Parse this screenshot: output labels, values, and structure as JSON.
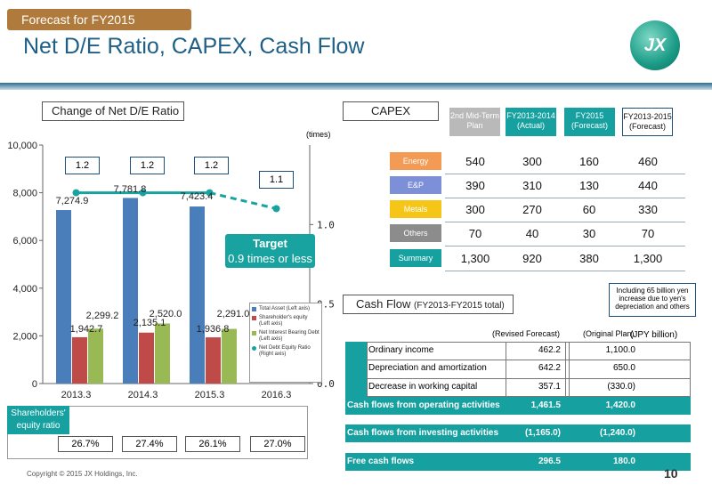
{
  "header": {
    "tag": "Forecast for FY2015",
    "title": "Net D/E Ratio, CAPEX, Cash Flow",
    "logo_text": "JX"
  },
  "left_panel": {
    "title": "Change of Net D/E Ratio",
    "right_axis_unit": "(times)",
    "target_title": "Target",
    "target_text": "0.9 times or less",
    "bar_labels": [
      [
        "7,274.9",
        "1,942.7",
        "2,299.2"
      ],
      [
        "7,781.8",
        "2,135.1",
        "2,520.0"
      ],
      [
        "7,423.4",
        "1,936.8",
        "2,291.0"
      ]
    ],
    "ratio_labels": [
      "1.2",
      "1.2",
      "1.2",
      "1.1"
    ],
    "legend": [
      "Total Asset (Left axis)",
      "Shareholder's equity (Left axis)",
      "Net Interest Bearing Debt (Left axis)",
      "Net Debt Equity Ratio (Right axis)"
    ],
    "equity_label": "Shareholders' equity ratio",
    "equity_ratios": [
      "26.7%",
      "27.4%",
      "26.1%",
      "27.0%"
    ]
  },
  "chart_data": {
    "type": "bar",
    "categories": [
      "2013.3",
      "2014.3",
      "2015.3",
      "2016.3"
    ],
    "series": [
      {
        "name": "Total Asset (Left axis)",
        "axis": "left",
        "values": [
          7274.9,
          7781.8,
          7423.4,
          null
        ],
        "color": "#4a7ebb"
      },
      {
        "name": "Shareholder's equity (Left axis)",
        "axis": "left",
        "values": [
          1942.7,
          2135.1,
          1936.8,
          null
        ],
        "color": "#be4b48"
      },
      {
        "name": "Net Interest Bearing Debt (Left axis)",
        "axis": "left",
        "values": [
          2299.2,
          2520.0,
          2291.0,
          null
        ],
        "color": "#98b954"
      },
      {
        "name": "Net Debt Equity Ratio (Right axis)",
        "axis": "right",
        "type": "line",
        "values": [
          1.2,
          1.2,
          1.2,
          1.1
        ],
        "color": "#18a3a0"
      }
    ],
    "target_value": 0.9,
    "ylim": [
      0,
      10000
    ],
    "y_ticks": [
      "0",
      "2,000",
      "4,000",
      "6,000",
      "8,000",
      "10,000"
    ],
    "y2lim": [
      0,
      1.5
    ],
    "y2_ticks": [
      "0.0",
      "0.5",
      "1.0"
    ],
    "ylabel": "",
    "y2label": "(times)"
  },
  "capex": {
    "title": "CAPEX",
    "headers": [
      {
        "label": "2nd Mid-Term Plan",
        "color": "#b9b9b9"
      },
      {
        "label": "FY2013-2014 (Actual)",
        "color": "#16a0a0"
      },
      {
        "label": "FY2015 (Forecast)",
        "color": "#16a0a0"
      },
      {
        "label": "FY2013-2015 (Forecast)",
        "color": "#ffffff"
      }
    ],
    "rows": [
      {
        "segment": "Energy",
        "color": "#f39a55",
        "values": [
          "540",
          "300",
          "160",
          "460"
        ]
      },
      {
        "segment": "E&P",
        "color": "#7d8fd6",
        "values": [
          "390",
          "310",
          "130",
          "440"
        ]
      },
      {
        "segment": "Metals",
        "color": "#f5c518",
        "values": [
          "300",
          "270",
          "60",
          "330"
        ]
      },
      {
        "segment": "Others",
        "color": "#8c8c8c",
        "values": [
          "70",
          "40",
          "30",
          "70"
        ]
      },
      {
        "segment": "Summary",
        "color": "#16a0a0",
        "values": [
          "1,300",
          "920",
          "380",
          "1,300"
        ]
      }
    ],
    "note": "Including 65 billion yen increase due to yen's depreciation and others"
  },
  "cashflow": {
    "title": "Cash Flow",
    "subtitle": "(FY2013-FY2015 total)",
    "col_revised": "(Revised Forecast)",
    "col_original": "(Original Plan)",
    "unit": "(JPY billion)",
    "items": [
      {
        "label": "Ordinary income",
        "revised": "462.2",
        "original": "1,100.0"
      },
      {
        "label": "Depreciation and amortization",
        "revised": "642.2",
        "original": "650.0"
      },
      {
        "label": "Decrease in working capital",
        "revised": "357.1",
        "original": "(330.0)"
      }
    ],
    "operating": {
      "label": "Cash flows from operating activities",
      "revised": "1,461.5",
      "original": "1,420.0"
    },
    "investing": {
      "label": "Cash flows from investing activities",
      "revised": "(1,165.0)",
      "original": "(1,240.0)"
    },
    "free": {
      "label": "Free cash flows",
      "revised": "296.5",
      "original": "180.0"
    }
  },
  "footer": {
    "copyright": "Copyright © 2015 JX Holdings, Inc.",
    "page": "10"
  }
}
